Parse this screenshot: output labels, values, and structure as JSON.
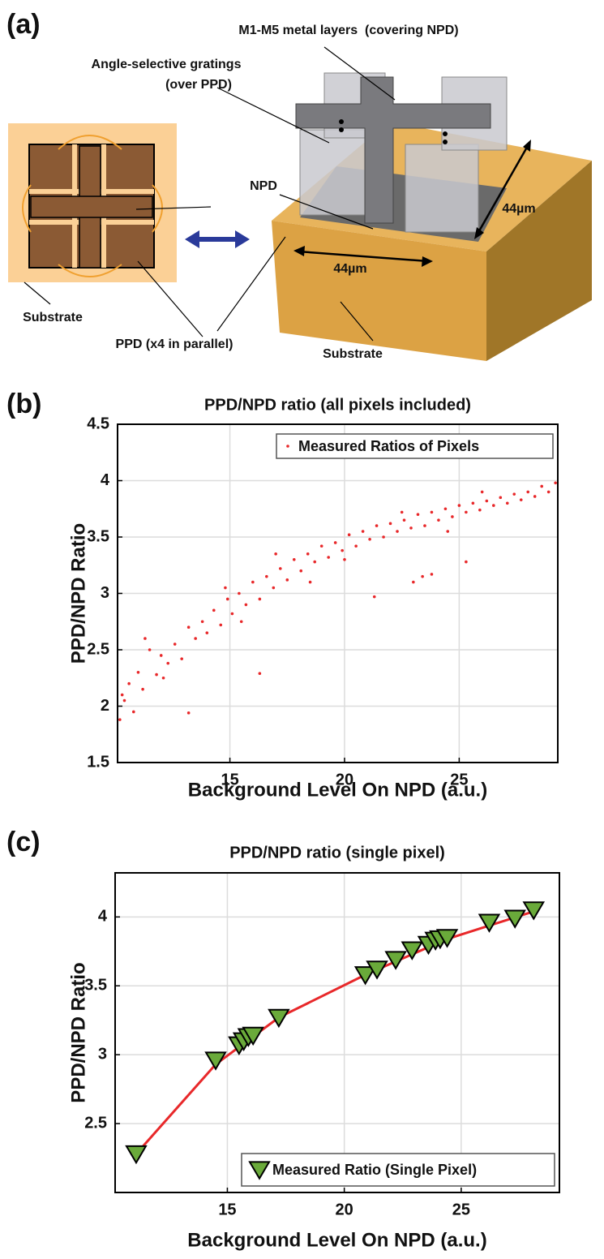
{
  "diagram": {
    "panel_label": "(a)",
    "metal_label": "M1-M5 metal layers  (covering NPD)",
    "grating_label": [
      "Angle-selective gratings",
      "(over PPD)"
    ],
    "npd_label": "NPD",
    "substrate_left": "Substrate",
    "ppd_label": "PPD (x4 in parallel)",
    "dim_right": "44µm",
    "dim_front": "44µm",
    "substrate_right": "Substrate"
  },
  "chart_data": [
    {
      "type": "scatter",
      "panel_label": "(b)",
      "title": "PPD/NPD ratio (all pixels included)",
      "xlabel": "Background Level On NPD (a.u.)",
      "ylabel": "PPD/NPD Ratio",
      "xlim": [
        10.1,
        29.3
      ],
      "xticks": [
        15,
        20,
        25
      ],
      "ylim": [
        1.5,
        4.5
      ],
      "yticks": [
        1.5,
        2,
        2.5,
        3,
        3.5,
        4,
        4.5
      ],
      "grid": true,
      "legend": "upper right",
      "series": [
        {
          "name": "Measured Ratios of Pixels",
          "color": "#e8282a",
          "marker": "dot",
          "x": [
            10.2,
            10.4,
            10.6,
            10.8,
            11.0,
            11.2,
            11.5,
            11.8,
            12.0,
            12.3,
            12.6,
            12.9,
            13.2,
            13.5,
            13.8,
            14.0,
            14.3,
            14.6,
            14.9,
            15.1,
            15.4,
            15.7,
            16.0,
            16.3,
            16.6,
            16.9,
            17.2,
            17.5,
            17.8,
            18.1,
            18.4,
            18.7,
            19.0,
            19.3,
            19.6,
            19.9,
            20.2,
            20.5,
            20.8,
            21.1,
            21.4,
            21.7,
            22.0,
            22.3,
            22.6,
            22.9,
            23.2,
            23.5,
            23.8,
            24.1,
            24.4,
            24.7,
            25.0,
            25.3,
            25.6,
            25.9,
            26.2,
            26.5,
            26.8,
            27.1,
            27.4,
            27.7,
            28.0,
            28.3,
            28.6,
            28.9,
            29.2,
            16.3,
            13.2,
            21.3,
            23.0,
            23.4,
            23.8,
            25.3,
            10.3,
            11.3,
            12.1,
            14.8,
            15.5,
            17.0,
            18.5,
            20.0,
            22.5,
            24.5,
            26.0
          ],
          "values": [
            1.88,
            2.05,
            2.2,
            1.95,
            2.3,
            2.15,
            2.5,
            2.28,
            2.45,
            2.38,
            2.55,
            2.42,
            2.7,
            2.6,
            2.75,
            2.65,
            2.85,
            2.72,
            2.95,
            2.82,
            3.0,
            2.9,
            3.1,
            2.95,
            3.15,
            3.05,
            3.22,
            3.12,
            3.3,
            3.2,
            3.35,
            3.28,
            3.42,
            3.32,
            3.45,
            3.38,
            3.52,
            3.42,
            3.55,
            3.48,
            3.6,
            3.5,
            3.62,
            3.55,
            3.65,
            3.58,
            3.7,
            3.6,
            3.72,
            3.65,
            3.75,
            3.68,
            3.78,
            3.72,
            3.8,
            3.74,
            3.82,
            3.78,
            3.85,
            3.8,
            3.88,
            3.83,
            3.9,
            3.86,
            3.95,
            3.9,
            3.98,
            2.29,
            1.94,
            2.97,
            3.1,
            3.15,
            3.17,
            3.28,
            2.1,
            2.6,
            2.25,
            3.05,
            2.75,
            3.35,
            3.1,
            3.3,
            3.72,
            3.55,
            3.9
          ]
        }
      ]
    },
    {
      "type": "scatter",
      "panel_label": "(c)",
      "title": "PPD/NPD ratio (single pixel)",
      "xlabel": "Background Level On NPD (a.u.)",
      "ylabel": "PPD/NPD Ratio",
      "xlim": [
        10.2,
        29.2
      ],
      "xticks": [
        15,
        20,
        25
      ],
      "ylim": [
        2.0,
        4.32
      ],
      "yticks": [
        2.5,
        3,
        3.5,
        4
      ],
      "grid": true,
      "legend": "lower right",
      "series": [
        {
          "color": "#e8282a",
          "style": "line",
          "x": [
            11.1,
            14.5,
            17.2,
            20.9,
            24.4,
            28.1
          ],
          "values": [
            2.28,
            2.93,
            3.27,
            3.58,
            3.84,
            4.04
          ]
        },
        {
          "name": "Measured Ratio (Single Pixel)",
          "color": "#6aaa3a",
          "marker": "triangle-down",
          "x": [
            11.1,
            14.5,
            15.5,
            15.7,
            15.9,
            16.1,
            17.2,
            20.9,
            21.4,
            22.2,
            22.9,
            23.6,
            23.9,
            24.1,
            24.4,
            26.2,
            27.3,
            28.1
          ],
          "values": [
            2.28,
            2.96,
            3.07,
            3.1,
            3.13,
            3.14,
            3.27,
            3.58,
            3.62,
            3.69,
            3.76,
            3.8,
            3.83,
            3.84,
            3.85,
            3.96,
            3.99,
            4.05
          ]
        }
      ]
    }
  ]
}
